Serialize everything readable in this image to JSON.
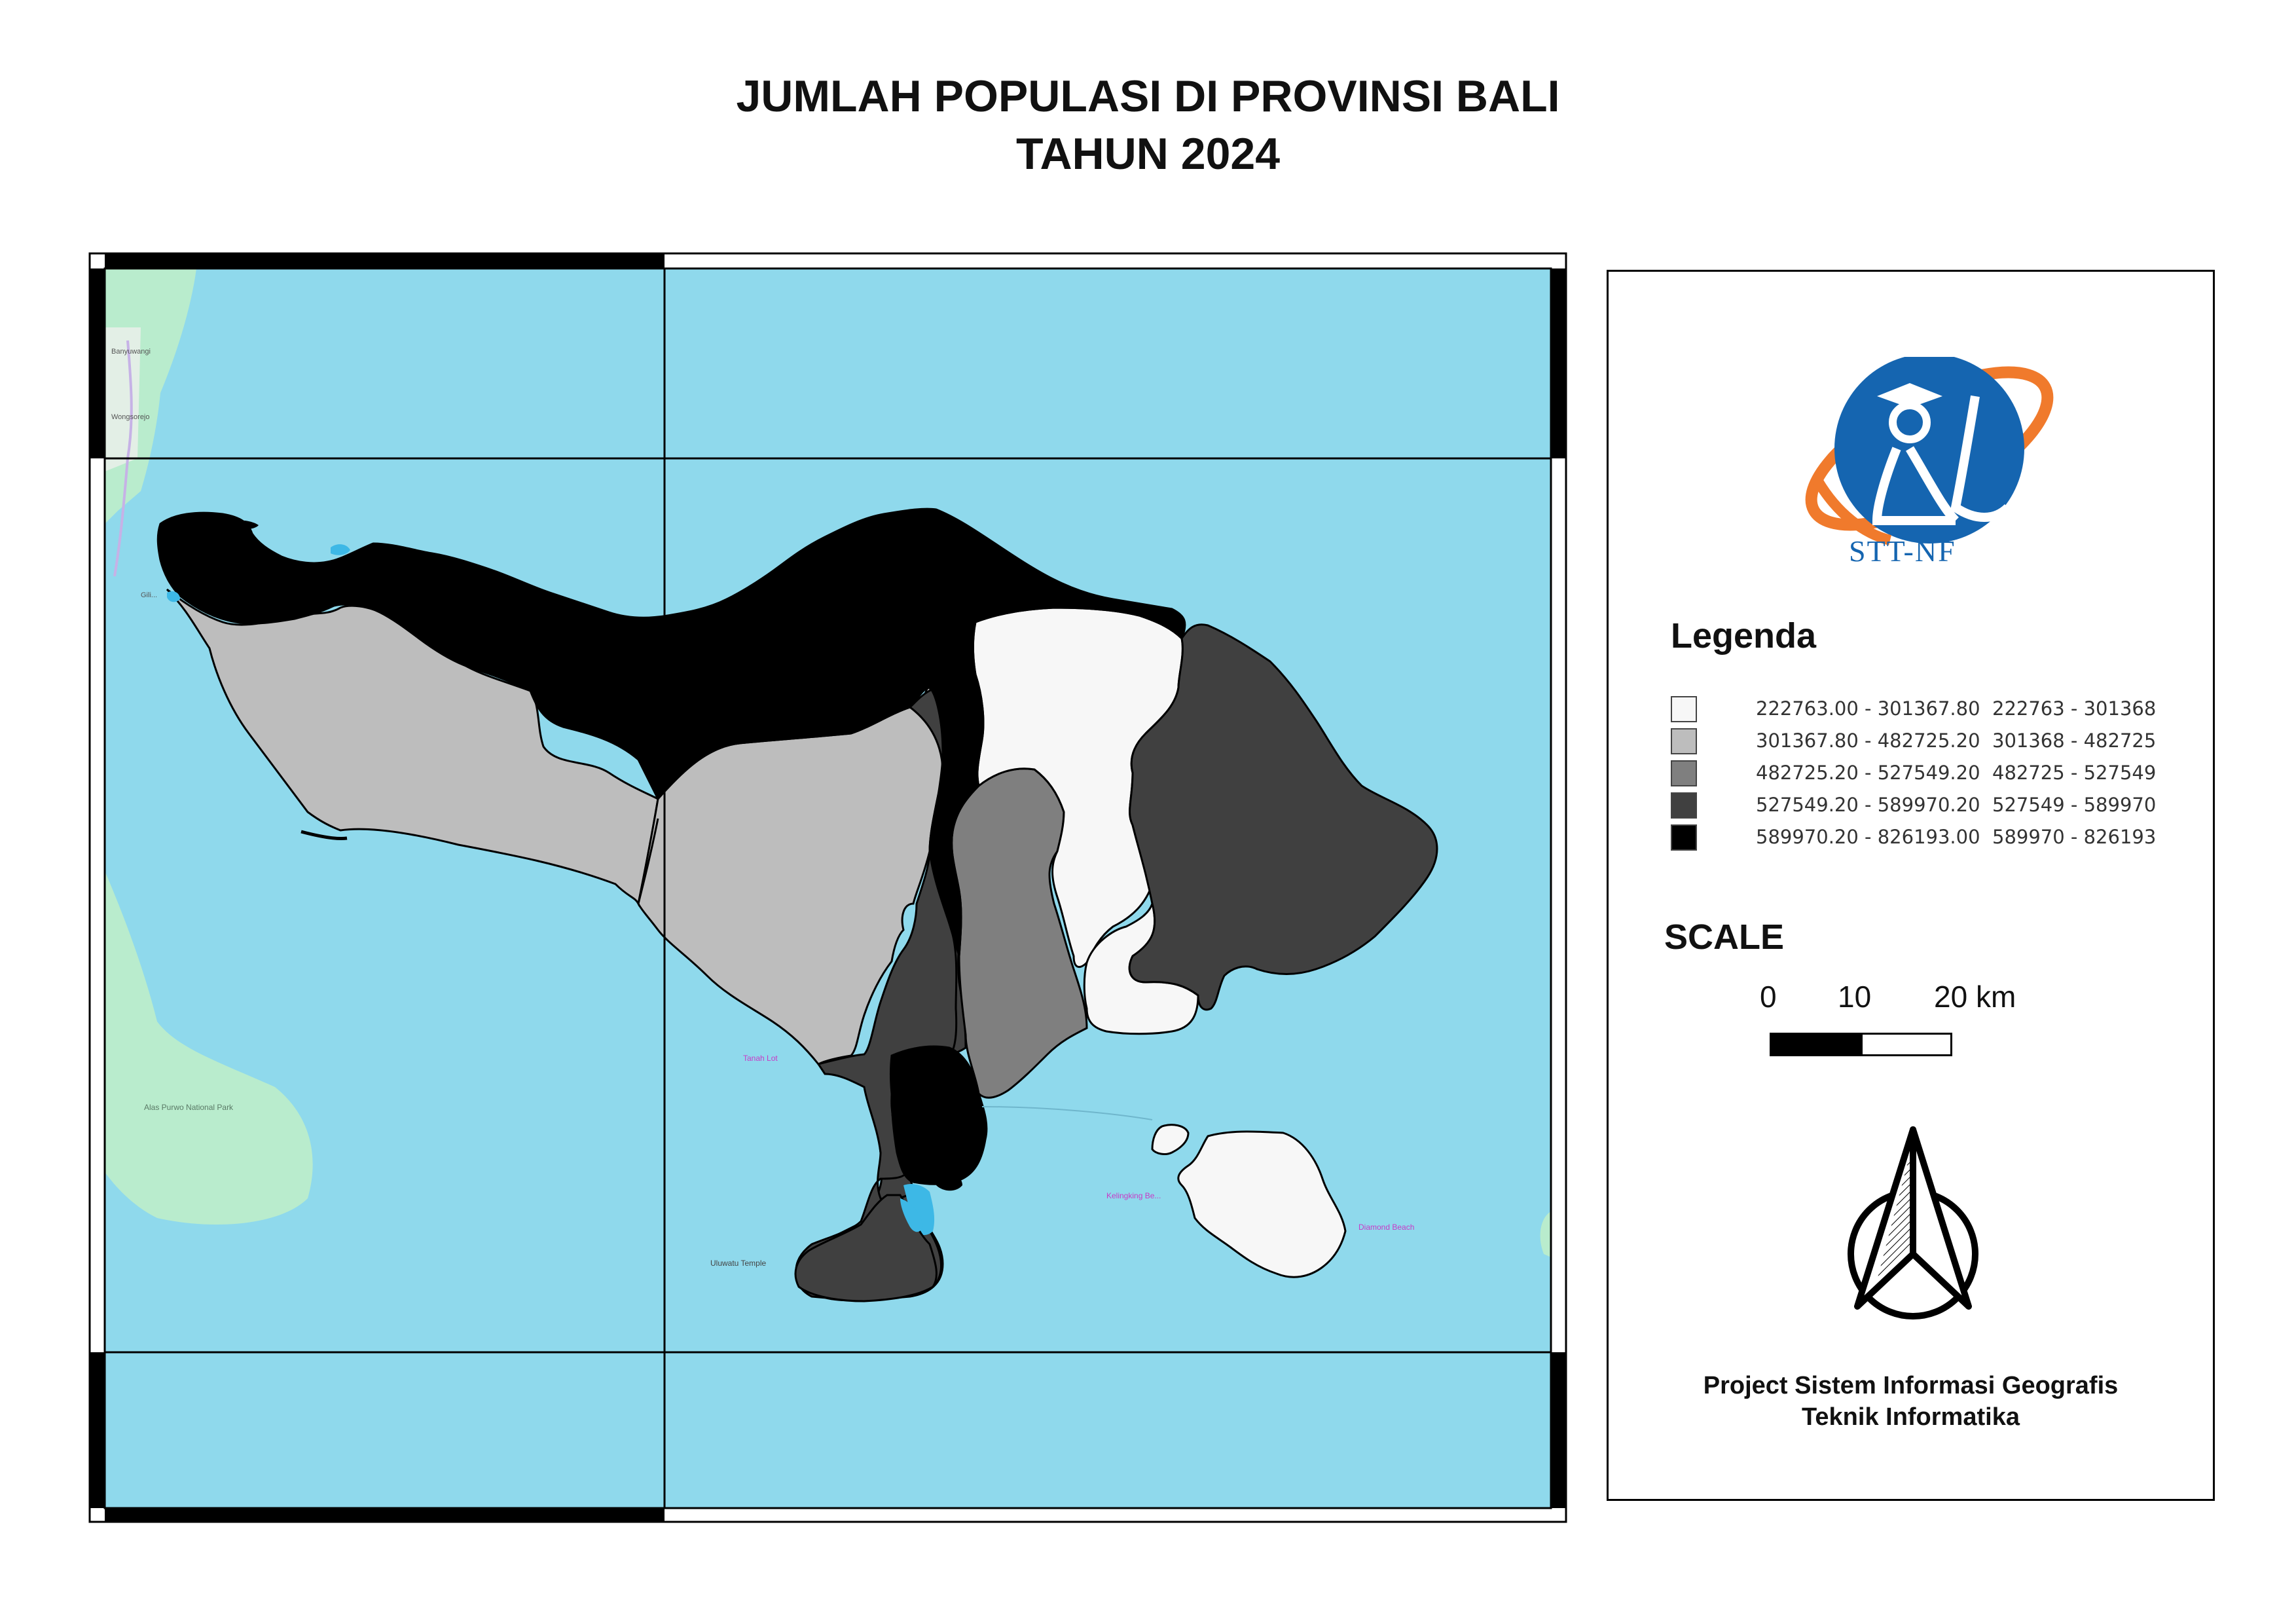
{
  "title": {
    "line1": "JUMLAH POPULASI DI PROVINSI BALI",
    "line2": "TAHUN 2024"
  },
  "logo": {
    "text": "STT-NF",
    "colors": {
      "primary": "#1565b0",
      "accent": "#f07a2c"
    }
  },
  "legend": {
    "title": "Legenda",
    "items": [
      {
        "range": "222763.00 - 301367.80",
        "short": "222763 - 301368",
        "color": "#f7f7f7"
      },
      {
        "range": "301367.80 - 482725.20",
        "short": "301368 - 482725",
        "color": "#bdbdbd"
      },
      {
        "range": "482725.20 - 527549.20",
        "short": "482725 - 527549",
        "color": "#7f7f7f"
      },
      {
        "range": "527549.20 - 589970.20",
        "short": "527549 - 589970",
        "color": "#404040"
      },
      {
        "range": "589970.20 - 826193.00",
        "short": "589970 - 826193",
        "color": "#000000"
      }
    ]
  },
  "scale": {
    "title": "SCALE",
    "ticks": [
      "0",
      "10",
      "20 km"
    ]
  },
  "footer": {
    "line1": "Project Sistem Informasi Geografis",
    "line2": "Teknik Informatika"
  },
  "map_labels": {
    "park": "Alas Purwo National Park",
    "tanah_lot": "Tanah Lot",
    "uluwatu": "Uluwatu Temple",
    "kelingking": "Kelingking Be...",
    "diamond": "Diamond Beach",
    "gilimanuk": "Gili...",
    "banyuwangi": "Banyuwangi",
    "wongsorejo": "Wongsorejo"
  },
  "colors": {
    "sea": "#8fd9ec",
    "land": "#b9eccd",
    "water_body": "#3db8e6"
  }
}
